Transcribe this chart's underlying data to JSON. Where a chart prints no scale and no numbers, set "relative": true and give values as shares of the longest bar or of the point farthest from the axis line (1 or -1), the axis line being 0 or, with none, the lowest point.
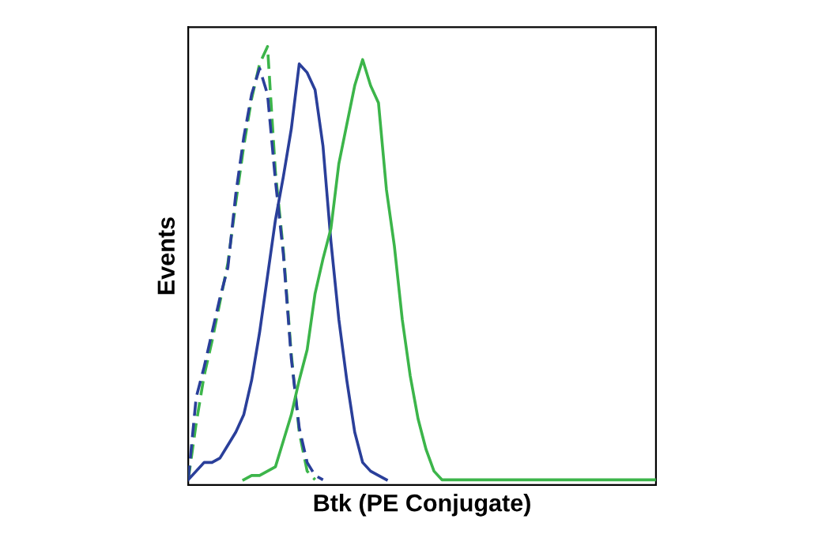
{
  "chart_data": {
    "type": "line",
    "relative": true,
    "xlabel": "Btk (PE Conjugate)",
    "ylabel": "Events",
    "tick_labels": false,
    "legend": false,
    "grid": false,
    "marker": "none",
    "categories": [
      null,
      null,
      null,
      null,
      null,
      null,
      null,
      null,
      null,
      null,
      null,
      null,
      null,
      null,
      null,
      null,
      null,
      null,
      null,
      null,
      null,
      null,
      null,
      null,
      null,
      null,
      null,
      null,
      null,
      null,
      null,
      null,
      null,
      null,
      null,
      null,
      null,
      null,
      null,
      null,
      null,
      null,
      null,
      null,
      null,
      null,
      null,
      null,
      null,
      null,
      null,
      null,
      null,
      null,
      null,
      null,
      null,
      null,
      null,
      null
    ],
    "series": [
      {
        "color": "#3cb54a",
        "line_style": "dashed",
        "values": [
          0,
          0.13,
          0.24,
          0.32,
          0.41,
          0.5,
          0.64,
          0.77,
          0.88,
          0.96,
          1.0,
          0.71,
          0.53,
          0.29,
          0.11,
          0.02,
          0,
          null,
          null,
          null,
          null,
          null,
          null,
          null,
          null,
          null,
          null,
          null,
          null,
          null,
          null,
          null,
          null,
          null,
          null,
          null,
          null,
          null,
          null,
          null,
          null,
          null,
          null,
          null,
          null,
          null,
          null,
          null,
          null,
          null,
          null,
          null,
          null,
          null,
          null,
          null,
          null,
          null,
          null,
          null
        ]
      },
      {
        "color": "#2a3f9a",
        "line_style": "dashed",
        "values": [
          0,
          0.19,
          0.26,
          0.34,
          0.42,
          0.49,
          0.66,
          0.79,
          0.89,
          0.95,
          0.89,
          0.69,
          0.52,
          0.28,
          0.12,
          0.04,
          0.01,
          0,
          null,
          null,
          null,
          null,
          null,
          null,
          null,
          null,
          null,
          null,
          null,
          null,
          null,
          null,
          null,
          null,
          null,
          null,
          null,
          null,
          null,
          null,
          null,
          null,
          null,
          null,
          null,
          null,
          null,
          null,
          null,
          null,
          null,
          null,
          null,
          null,
          null,
          null,
          null,
          null,
          null,
          null
        ]
      },
      {
        "color": "#2a3f9a",
        "line_style": "solid",
        "values": [
          0,
          0.02,
          0.04,
          0.04,
          0.05,
          0.08,
          0.11,
          0.15,
          0.23,
          0.34,
          0.47,
          0.6,
          0.7,
          0.81,
          0.96,
          0.94,
          0.9,
          0.77,
          0.55,
          0.37,
          0.23,
          0.11,
          0.04,
          0.02,
          0.01,
          0,
          null,
          null,
          null,
          null,
          null,
          null,
          null,
          null,
          null,
          null,
          null,
          null,
          null,
          null,
          null,
          null,
          null,
          null,
          null,
          null,
          null,
          null,
          null,
          null,
          null,
          null,
          null,
          null,
          null,
          null,
          null,
          null,
          null,
          null
        ]
      },
      {
        "color": "#3cb54a",
        "line_style": "solid",
        "values": [
          null,
          null,
          null,
          null,
          null,
          null,
          null,
          0,
          0.01,
          0.01,
          0.02,
          0.03,
          0.09,
          0.15,
          0.23,
          0.3,
          0.43,
          0.51,
          0.58,
          0.73,
          0.82,
          0.91,
          0.97,
          0.91,
          0.87,
          0.67,
          0.54,
          0.37,
          0.24,
          0.14,
          0.07,
          0.02,
          0,
          0,
          0,
          0,
          0,
          0,
          0,
          0,
          0,
          0,
          0,
          0,
          0,
          0,
          0,
          0,
          0,
          0,
          0,
          0,
          0,
          0,
          0,
          0,
          0,
          0,
          0,
          0
        ]
      }
    ]
  }
}
